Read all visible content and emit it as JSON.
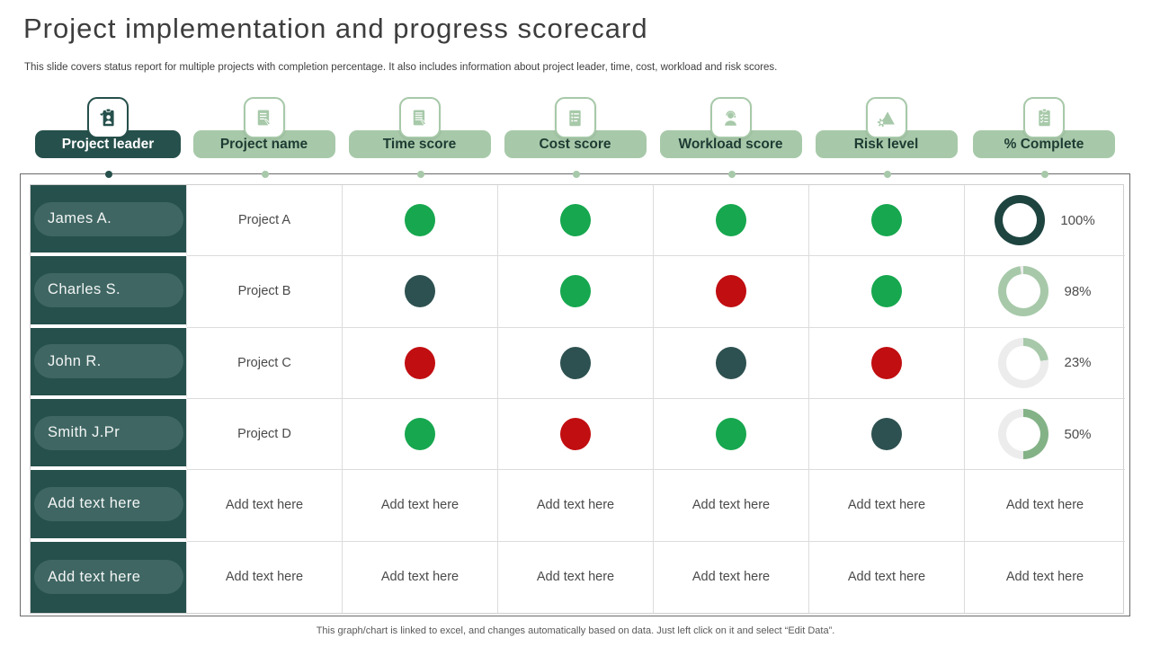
{
  "slide": {
    "title": "Project implementation and progress scorecard",
    "subtitle": "This slide covers status report for multiple projects with completion percentage. It also includes information about project leader, time, cost, workload and risk scores.",
    "footer": "This graph/chart is linked to excel,  and changes automatically based on data. Just left click on it and select “Edit Data”."
  },
  "colors": {
    "dark_teal": "#26504b",
    "leader_pill": "#3f6663",
    "light_green": "#a7c9a9",
    "medium_green": "#83b287",
    "status_green": "#17a74f",
    "status_red": "#c10e11",
    "status_dark": "#2d5150",
    "donut_dark": "#1e4440",
    "donut_track": "#ececec"
  },
  "columns": [
    {
      "id": "leader",
      "label": "Project leader",
      "icon": "leader-badge-icon",
      "style": "dark"
    },
    {
      "id": "project",
      "label": "Project name",
      "icon": "document-pencil-icon",
      "style": "light"
    },
    {
      "id": "time",
      "label": "Time score",
      "icon": "checklist-pencil-icon",
      "style": "light"
    },
    {
      "id": "cost",
      "label": "Cost score",
      "icon": "invoice-list-icon",
      "style": "light"
    },
    {
      "id": "workload",
      "label": "Workload score",
      "icon": "person-headset-icon",
      "style": "light"
    },
    {
      "id": "risk",
      "label": "Risk level",
      "icon": "triangle-gear-icon",
      "style": "light"
    },
    {
      "id": "complete",
      "label": "% Complete",
      "icon": "clipboard-check-icon",
      "style": "light"
    }
  ],
  "table": {
    "rows": [
      {
        "leader": "James A.",
        "project": "Project A",
        "time": "green",
        "cost": "green",
        "workload": "green",
        "risk": "green",
        "complete": {
          "percent": 100,
          "label": "100%",
          "ring": "dark"
        }
      },
      {
        "leader": "Charles S.",
        "project": "Project B",
        "time": "dark",
        "cost": "green",
        "workload": "red",
        "risk": "green",
        "complete": {
          "percent": 98,
          "label": "98%",
          "ring": "light"
        }
      },
      {
        "leader": "John R.",
        "project": "Project C",
        "time": "red",
        "cost": "dark",
        "workload": "dark",
        "risk": "red",
        "complete": {
          "percent": 23,
          "label": "23%",
          "ring": "light"
        }
      },
      {
        "leader": "Smith J.Pr",
        "project": "Project D",
        "time": "green",
        "cost": "red",
        "workload": "green",
        "risk": "dark",
        "complete": {
          "percent": 50,
          "label": "50%",
          "ring": "medium"
        }
      },
      {
        "leader": "Add text here",
        "project": "Add text here",
        "time": "Add text here",
        "cost": "Add text here",
        "workload": "Add text here",
        "risk": "Add text here",
        "complete": {
          "text": "Add text here"
        }
      },
      {
        "leader": "Add text here",
        "project": "Add text here",
        "time": "Add text here",
        "cost": "Add text here",
        "workload": "Add text here",
        "risk": "Add text here",
        "complete": {
          "text": "Add text here"
        }
      }
    ]
  }
}
